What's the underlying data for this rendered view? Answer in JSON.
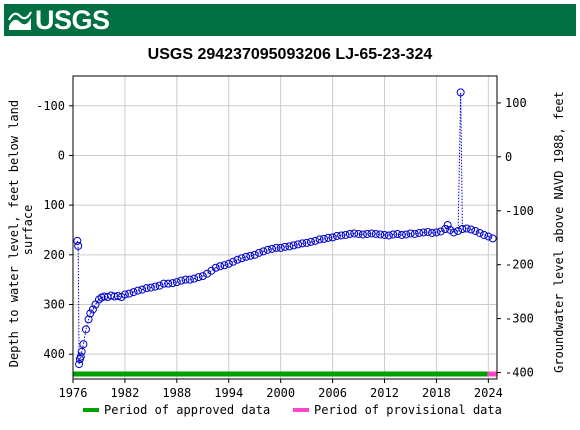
{
  "header": {
    "logo_text": "USGS",
    "colors": {
      "banner": "#006f41",
      "logo": "#ffffff"
    }
  },
  "chart_data": {
    "type": "line",
    "title": "USGS 294237095093206 LJ-65-23-324",
    "ylabel_left_lines": [
      "Depth to water level, feet below land",
      "surface"
    ],
    "ylabel_right": "Groundwater level above NAVD 1988, feet",
    "xlim": [
      1976,
      2025
    ],
    "ylim_left": [
      -160,
      450
    ],
    "ylim_right": [
      -412,
      150
    ],
    "x_ticks": [
      1976,
      1982,
      1988,
      1994,
      2000,
      2006,
      2012,
      2018,
      2024
    ],
    "y_ticks_left": [
      -100,
      0,
      100,
      200,
      300,
      400
    ],
    "y_ticks_right": [
      100,
      0,
      -100,
      -200,
      -300,
      -400
    ],
    "grid": true,
    "series": [
      {
        "color": "#0000cc",
        "marker": "circle-open",
        "line": "dotted",
        "x": [
          1976.5,
          1976.6,
          1976.7,
          1976.8,
          1976.9,
          1977.0,
          1977.2,
          1977.5,
          1977.8,
          1978.0,
          1978.3,
          1978.6,
          1979.0,
          1979.3,
          1979.6,
          1980.0,
          1980.4,
          1980.8,
          1981.2,
          1981.6,
          1982.0,
          1982.5,
          1983.0,
          1983.5,
          1984.0,
          1984.5,
          1985.0,
          1985.5,
          1986.0,
          1986.5,
          1987.0,
          1987.5,
          1988.0,
          1988.5,
          1989.0,
          1989.5,
          1990.0,
          1990.5,
          1991.0,
          1991.5,
          1992.0,
          1992.5,
          1993.0,
          1993.5,
          1994.0,
          1994.5,
          1995.0,
          1995.5,
          1996.0,
          1996.5,
          1997.0,
          1997.5,
          1998.0,
          1998.5,
          1999.0,
          1999.5,
          2000.0,
          2000.5,
          2001.0,
          2001.5,
          2002.0,
          2002.5,
          2003.0,
          2003.5,
          2004.0,
          2004.5,
          2005.0,
          2005.5,
          2006.0,
          2006.5,
          2007.0,
          2007.5,
          2008.0,
          2008.5,
          2009.0,
          2009.5,
          2010.0,
          2010.5,
          2011.0,
          2011.5,
          2012.0,
          2012.5,
          2013.0,
          2013.5,
          2014.0,
          2014.5,
          2015.0,
          2015.5,
          2016.0,
          2016.5,
          2017.0,
          2017.5,
          2018.0,
          2018.5,
          2019.0,
          2019.3,
          2019.6,
          2020.0,
          2020.5,
          2020.8,
          2021.0,
          2021.5,
          2022.0,
          2022.5,
          2023.0,
          2023.5,
          2024.0,
          2024.5
        ],
        "y": [
          172,
          182,
          420,
          410,
          405,
          395,
          380,
          350,
          330,
          318,
          310,
          300,
          290,
          286,
          284,
          285,
          282,
          284,
          283,
          285,
          280,
          278,
          275,
          272,
          270,
          267,
          266,
          264,
          262,
          258,
          258,
          257,
          255,
          252,
          250,
          250,
          248,
          245,
          243,
          238,
          232,
          226,
          223,
          221,
          218,
          214,
          210,
          207,
          204,
          202,
          200,
          196,
          193,
          190,
          188,
          186,
          186,
          184,
          183,
          181,
          179,
          177,
          176,
          174,
          172,
          169,
          168,
          166,
          165,
          162,
          161,
          160,
          158,
          157,
          158,
          159,
          158,
          157,
          158,
          159,
          160,
          161,
          159,
          158,
          160,
          159,
          157,
          158,
          156,
          155,
          154,
          156,
          155,
          153,
          148,
          140,
          150,
          155,
          152,
          -127,
          148,
          147,
          149,
          152,
          156,
          160,
          163,
          167
        ]
      }
    ],
    "legend": [
      {
        "label": "Period of approved data",
        "color": "#00a000"
      },
      {
        "label": "Period of provisional data",
        "color": "#ff44cc"
      }
    ],
    "periods": [
      {
        "kind": "approved",
        "from": 1976,
        "to": 2023.9,
        "color": "#00a000"
      },
      {
        "kind": "provisional",
        "from": 2023.9,
        "to": 2025,
        "color": "#ff44cc"
      }
    ]
  }
}
